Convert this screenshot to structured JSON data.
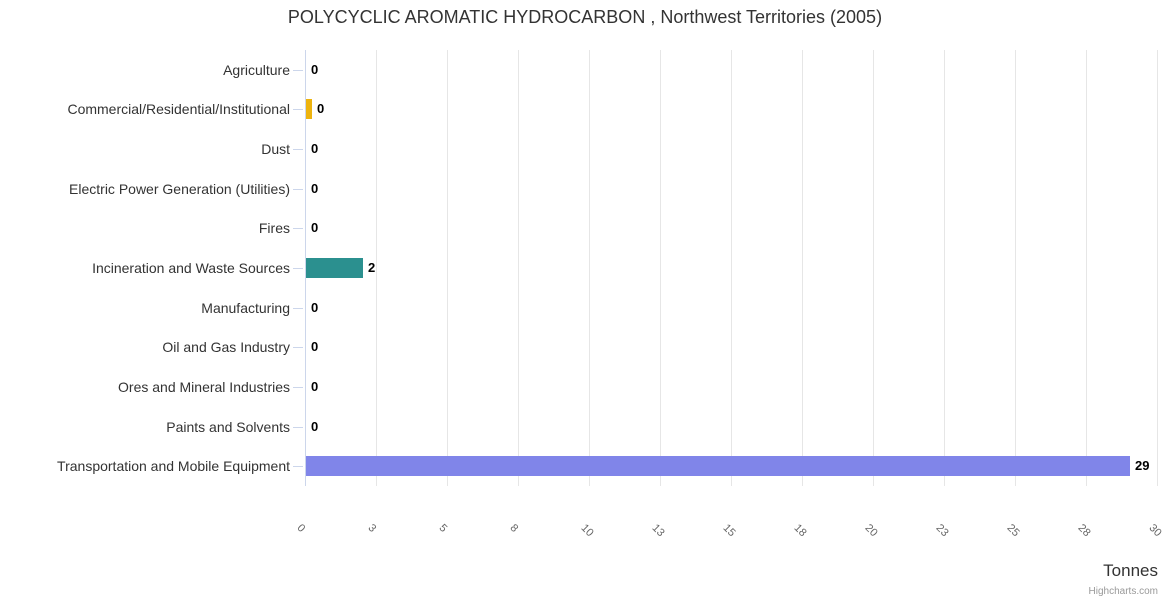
{
  "title": "POLYCYCLIC AROMATIC HYDROCARBON , Northwest Territories (2005)",
  "chart_data": {
    "type": "bar",
    "orientation": "horizontal",
    "title": "POLYCYCLIC AROMATIC HYDROCARBON , Northwest Territories (2005)",
    "categories": [
      "Agriculture",
      "Commercial/Residential/Institutional",
      "Dust",
      "Electric Power Generation (Utilities)",
      "Fires",
      "Incineration and Waste Sources",
      "Manufacturing",
      "Oil and Gas Industry",
      "Ores and Mineral Industries",
      "Paints and Solvents",
      "Transportation and Mobile Equipment"
    ],
    "values": [
      0,
      0.2,
      0,
      0,
      0,
      2,
      0,
      0,
      0,
      0,
      29
    ],
    "value_labels": [
      "0",
      "0",
      "0",
      "0",
      "0",
      "2",
      "0",
      "0",
      "0",
      "0",
      "29"
    ],
    "bar_colors": [
      "#7cb5ec",
      "#edb30e",
      "#7cb5ec",
      "#7cb5ec",
      "#7cb5ec",
      "#2b908f",
      "#7cb5ec",
      "#7cb5ec",
      "#7cb5ec",
      "#7cb5ec",
      "#8085e9"
    ],
    "xlabel": "Tonnes",
    "x_ticks": [
      "0",
      "3",
      "5",
      "8",
      "10",
      "13",
      "15",
      "18",
      "20",
      "23",
      "25",
      "28",
      "30"
    ],
    "xlim": [
      0,
      30
    ],
    "grid": true,
    "legend": false,
    "credit": "Highcharts.com"
  },
  "colors": {
    "background": "#ffffff",
    "axis_line": "#ccd6eb",
    "gridline": "#e6e6e6",
    "title_text": "#333333",
    "category_label": "#333333",
    "value_label": "#000000",
    "tick_label": "#666666",
    "axis_title": "#333333",
    "credit": "#999999"
  }
}
